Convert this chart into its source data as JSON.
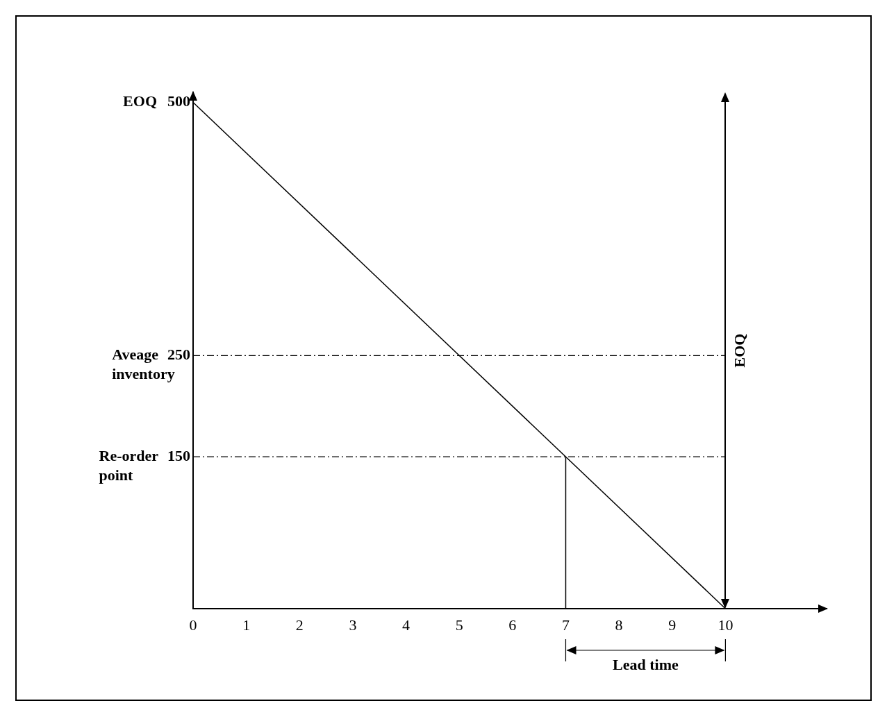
{
  "chart_data": {
    "type": "line",
    "series": [
      {
        "color": "#000000",
        "x": [
          0,
          10
        ],
        "values": [
          500,
          0
        ]
      },
      {
        "color": "#000000",
        "x": [
          7,
          7
        ],
        "values": [
          0,
          150
        ]
      }
    ],
    "xlim": [
      0,
      11.9
    ],
    "xticks": [
      0,
      1,
      2,
      3,
      4,
      5,
      6,
      7,
      8,
      9,
      10
    ],
    "ylim": [
      0,
      510
    ],
    "yticks": [
      150,
      250,
      500
    ],
    "ref_lines": [
      {
        "axis": "y",
        "value": 250,
        "label": "Aveage inventory",
        "line_style": "dashed",
        "color": "#000000"
      },
      {
        "axis": "y",
        "value": 150,
        "label": "Re-order point",
        "line_style": "dashed",
        "color": "#000000"
      },
      {
        "axis": "x",
        "value": 10,
        "label": "EOQ",
        "line_style": "solid",
        "color": "#000000"
      }
    ],
    "annotations": [
      "EOQ",
      "Lead time"
    ],
    "grid": false,
    "legend": false,
    "marker": "none",
    "line_style": "solid"
  }
}
